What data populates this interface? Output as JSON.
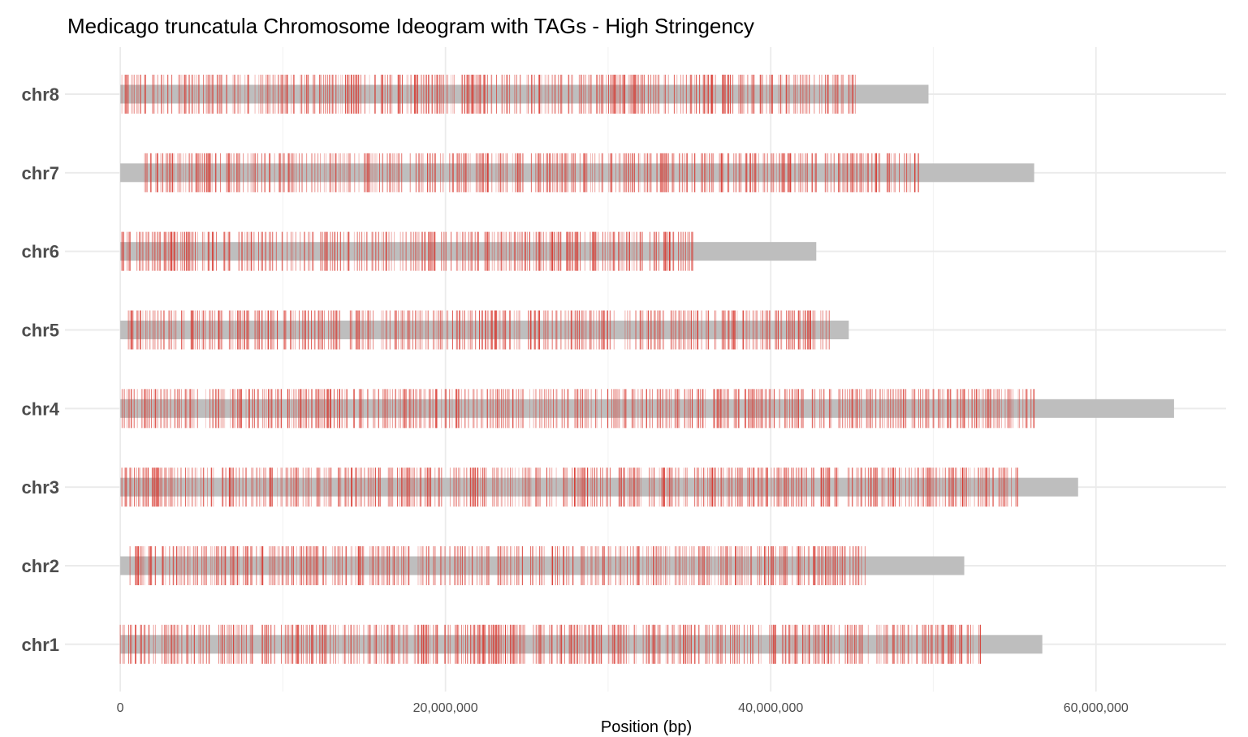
{
  "chart_data": {
    "type": "ideogram",
    "title": "Medicago truncatula Chromosome Ideogram with TAGs - High Stringency",
    "xlabel": "Position (bp)",
    "ylabel": "",
    "xlim": [
      -3400000,
      68000000
    ],
    "x_ticks": [
      0,
      20000000,
      40000000,
      60000000
    ],
    "x_tick_labels": [
      "0",
      "20,000,000",
      "40,000,000",
      "60,000,000"
    ],
    "grid": true,
    "colors": {
      "chromosome": "#bebebe",
      "tag": "#d73027",
      "grid": "#ebebeb"
    },
    "chromosomes": [
      {
        "name": "chr8",
        "length": 49700000,
        "tag_start": 100000,
        "tag_end": 45200000
      },
      {
        "name": "chr7",
        "length": 56200000,
        "tag_start": 1500000,
        "tag_end": 49100000
      },
      {
        "name": "chr6",
        "length": 42800000,
        "tag_start": 100000,
        "tag_end": 35200000
      },
      {
        "name": "chr5",
        "length": 44800000,
        "tag_start": 500000,
        "tag_end": 43600000
      },
      {
        "name": "chr4",
        "length": 64800000,
        "tag_start": 100000,
        "tag_end": 56200000
      },
      {
        "name": "chr3",
        "length": 58900000,
        "tag_start": 100000,
        "tag_end": 55200000
      },
      {
        "name": "chr2",
        "length": 51900000,
        "tag_start": 600000,
        "tag_end": 45800000
      },
      {
        "name": "chr1",
        "length": 56700000,
        "tag_start": 0,
        "tag_end": 52900000
      }
    ]
  }
}
